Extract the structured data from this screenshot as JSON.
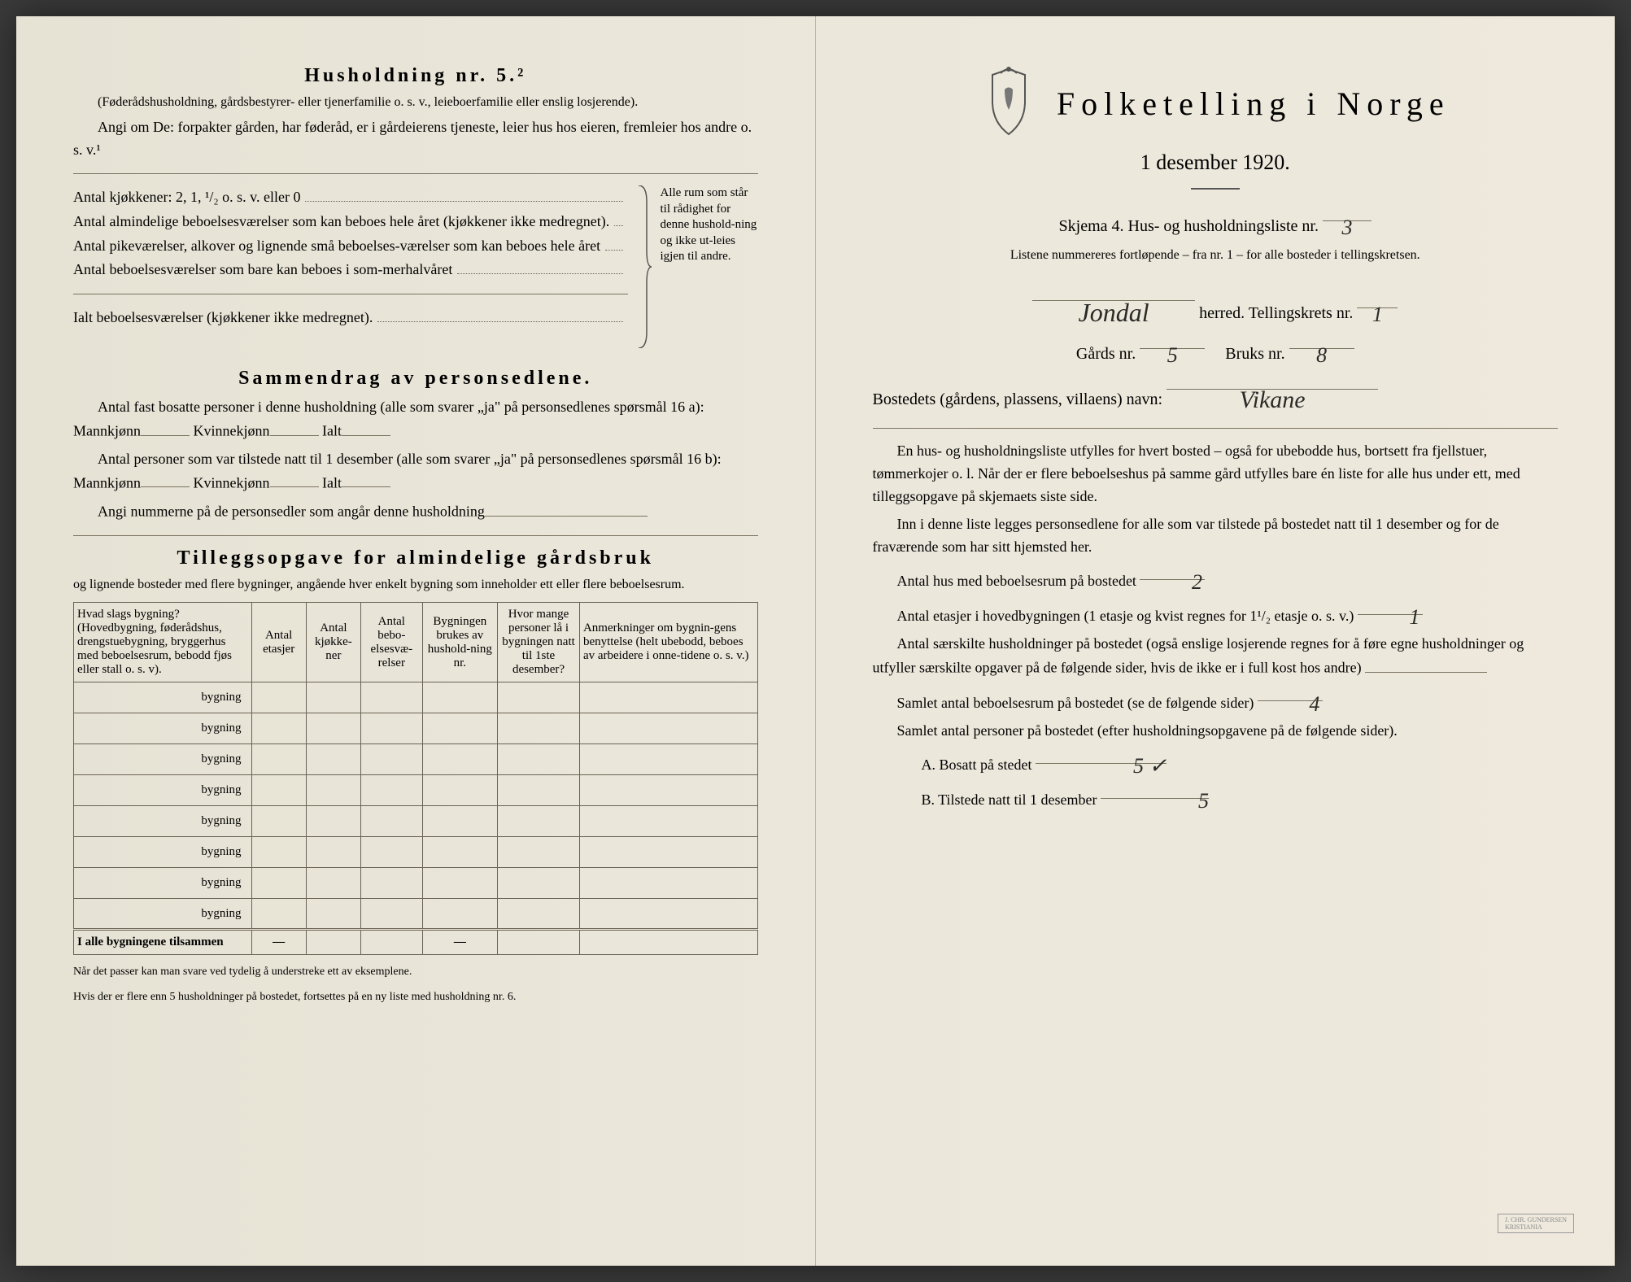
{
  "left": {
    "household_title": "Husholdning nr. 5.²",
    "household_note": "(Føderådshusholdning, gårdsbestyrer- eller tjenerfamilie o. s. v., leieboerfamilie eller enslig losjerende).",
    "angi_intro": "Angi om De:  forpakter gården, har føderåd, er i gårdeierens tjeneste, leier hus hos eieren, fremleier hos andre o. s. v.¹",
    "kitchen_line": "Antal kjøkkener: 2, 1, ¹/₂ o. s. v. eller 0",
    "rooms1": "Antal almindelige beboelsesværelser som kan beboes hele året (kjøkkener ikke medregnet).",
    "rooms2": "Antal pikeværelser, alkover og lignende små beboelses-værelser som kan beboes hele året",
    "rooms3": "Antal beboelsesværelser som bare kan beboes i som-merhalvåret",
    "rooms_total": "Ialt beboelsesværelser (kjøkkener ikke medregnet).",
    "side_brace": "Alle rum som står til rådighet for denne hushold-ning og ikke ut-leies igjen til andre.",
    "sammendrag_title": "Sammendrag av personsedlene.",
    "samm1": "Antal fast bosatte personer i denne husholdning (alle som svarer „ja\" på personsedlenes spørsmål 16 a): Mannkjønn",
    "kvinne": "Kvinnekjønn",
    "ialt": "Ialt",
    "samm2": "Antal personer som var tilstede natt til 1 desember (alle som svarer „ja\" på personsedlenes spørsmål 16 b): Mannkjønn",
    "samm3": "Angi nummerne på de personsedler som angår denne husholdning",
    "tillegg_title": "Tilleggsopgave for almindelige gårdsbruk",
    "tillegg_note": "og lignende bosteder med flere bygninger, angående hver enkelt bygning som inneholder ett eller flere beboelsesrum.",
    "table": {
      "cols": [
        "Hvad slags bygning?\n(Hovedbygning, føderådshus, drengstuebygning, bryggerhus med beboelsesrum, bebodd fjøs eller stall o. s. v).",
        "Antal etasjer",
        "Antal kjøkke-ner",
        "Antal bebo-elsesvæ-relser",
        "Bygningen brukes av hushold-ning nr.",
        "Hvor mange personer lå i bygningen natt til 1ste desember?",
        "Anmerkninger om bygnin-gens benyttelse (helt ubebodd, beboes av arbeidere i onne-tidene o. s. v.)"
      ],
      "row_label": "bygning",
      "row_count": 8,
      "sum_label": "I alle bygningene tilsammen"
    },
    "footnote1": "Når det passer kan man svare ved tydelig å understreke ett av eksemplene.",
    "footnote2": "Hvis der er flere enn 5 husholdninger på bostedet, fortsettes på en ny liste med husholdning nr. 6."
  },
  "right": {
    "title": "Folketelling i Norge",
    "date": "1 desember 1920.",
    "skjema": "Skjema 4.  Hus- og husholdningsliste nr.",
    "liste_nr": "3",
    "liste_note": "Listene nummereres fortløpende – fra nr. 1 – for alle bosteder i tellingskretsen.",
    "herred_label": "herred.   Tellingskrets nr.",
    "herred_value": "Jondal",
    "krets_value": "1",
    "gard_label": "Gårds nr.",
    "gard_value": "5",
    "bruk_label": "Bruks nr.",
    "bruk_value": "8",
    "bosted_label": "Bostedets (gårdens, plassens, villaens) navn:",
    "bosted_value": "Vikane",
    "para1": "En hus- og husholdningsliste utfylles for hvert bosted – også for ubebodde hus, bortsett fra fjellstuer, tømmerkojer o. l.  Når der er flere beboelseshus på samme gård utfylles bare én liste for alle hus under ett, med tilleggsopgave på skjemaets siste side.",
    "para2": "Inn i denne liste legges personsedlene for alle som var tilstede på bostedet natt til 1 desember og for de fraværende som har sitt hjemsted her.",
    "q1": "Antal hus med beboelsesrum på bostedet",
    "q1_val": "2",
    "q2": "Antal etasjer i hovedbygningen (1 etasje og kvist regnes for 1¹/₂ etasje o. s. v.)",
    "q2_val": "1",
    "q3": "Antal særskilte husholdninger på bostedet (også enslige losjerende regnes for å føre egne husholdninger og utfyller særskilte opgaver på de følgende sider, hvis de ikke er i full kost hos andre)",
    "q4": "Samlet antal beboelsesrum på bostedet (se de følgende sider)",
    "q4_val": "4",
    "q5": "Samlet antal personer på bostedet (efter husholdningsopgavene på de følgende sider).",
    "qA": "A.  Bosatt på stedet",
    "qA_val": "5 ✓",
    "qB": "B.  Tilstede natt til 1 desember",
    "qB_val": "5"
  }
}
